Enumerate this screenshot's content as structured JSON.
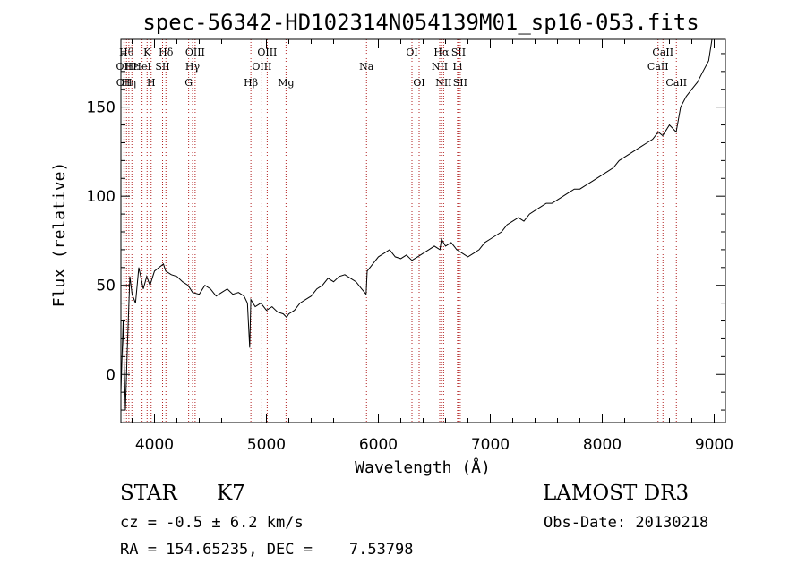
{
  "chart_data": {
    "type": "line",
    "title": "spec-56342-HD102314N054139M01_sp16-053.fits",
    "xlabel": "Wavelength (Å)",
    "ylabel": "Flux (relative)",
    "xlim": [
      3700,
      9100
    ],
    "ylim": [
      -27,
      188
    ],
    "x_ticks": [
      4000,
      5000,
      6000,
      7000,
      8000,
      9000
    ],
    "y_ticks": [
      0,
      50,
      100,
      150
    ],
    "grid": false,
    "series": [
      {
        "name": "flux",
        "x": [
          3700,
          3720,
          3740,
          3760,
          3780,
          3800,
          3830,
          3860,
          3900,
          3930,
          3960,
          4000,
          4040,
          4080,
          4100,
          4150,
          4200,
          4250,
          4300,
          4340,
          4400,
          4450,
          4500,
          4550,
          4600,
          4650,
          4700,
          4750,
          4800,
          4830,
          4850,
          4861,
          4900,
          4950,
          5000,
          5050,
          5100,
          5150,
          5180,
          5200,
          5250,
          5300,
          5350,
          5400,
          5450,
          5500,
          5550,
          5600,
          5650,
          5700,
          5750,
          5800,
          5850,
          5890,
          5900,
          5950,
          6000,
          6050,
          6100,
          6150,
          6200,
          6250,
          6300,
          6350,
          6400,
          6450,
          6500,
          6550,
          6563,
          6600,
          6650,
          6700,
          6750,
          6800,
          6850,
          6900,
          6950,
          7000,
          7050,
          7100,
          7150,
          7200,
          7250,
          7300,
          7350,
          7400,
          7450,
          7500,
          7550,
          7600,
          7650,
          7700,
          7750,
          7800,
          7850,
          7900,
          7950,
          8000,
          8050,
          8100,
          8150,
          8200,
          8250,
          8300,
          8350,
          8400,
          8450,
          8500,
          8540,
          8600,
          8660,
          8700,
          8750,
          8800,
          8850,
          8900,
          8950,
          8980
        ],
        "y": [
          -10,
          30,
          -20,
          20,
          55,
          45,
          40,
          60,
          48,
          55,
          50,
          58,
          60,
          62,
          58,
          56,
          55,
          52,
          50,
          46,
          45,
          50,
          48,
          44,
          46,
          48,
          45,
          46,
          44,
          40,
          15,
          42,
          38,
          40,
          36,
          38,
          35,
          34,
          32,
          34,
          36,
          40,
          42,
          44,
          48,
          50,
          54,
          52,
          55,
          56,
          54,
          52,
          48,
          45,
          58,
          62,
          66,
          68,
          70,
          66,
          65,
          67,
          64,
          66,
          68,
          70,
          72,
          70,
          76,
          72,
          74,
          70,
          68,
          66,
          68,
          70,
          74,
          76,
          78,
          80,
          84,
          86,
          88,
          86,
          90,
          92,
          94,
          96,
          96,
          98,
          100,
          102,
          104,
          104,
          106,
          108,
          110,
          112,
          114,
          116,
          120,
          122,
          124,
          126,
          128,
          130,
          132,
          136,
          134,
          140,
          136,
          150,
          156,
          160,
          164,
          170,
          176,
          188
        ]
      }
    ],
    "line_markers": [
      {
        "wl": 3727,
        "label": "OII",
        "row": 2
      },
      {
        "wl": 3729,
        "label": "OII",
        "row": 3
      },
      {
        "wl": 3750,
        "label": "Hθ",
        "row": 1
      },
      {
        "wl": 3771,
        "label": "Hη",
        "row": 3
      },
      {
        "wl": 3798,
        "label": "Hε",
        "row": 2
      },
      {
        "wl": 3889,
        "label": "HeI",
        "row": 2
      },
      {
        "wl": 3934,
        "label": "K",
        "row": 1
      },
      {
        "wl": 3970,
        "label": "H",
        "row": 3
      },
      {
        "wl": 4072,
        "label": "SII",
        "row": 2
      },
      {
        "wl": 4102,
        "label": "Hδ",
        "row": 1
      },
      {
        "wl": 4305,
        "label": "G",
        "row": 3
      },
      {
        "wl": 4340,
        "label": "Hγ",
        "row": 2
      },
      {
        "wl": 4363,
        "label": "OIII",
        "row": 1
      },
      {
        "wl": 4861,
        "label": "Hβ",
        "row": 3
      },
      {
        "wl": 4959,
        "label": "OIII",
        "row": 2
      },
      {
        "wl": 5007,
        "label": "OIII",
        "row": 1
      },
      {
        "wl": 5175,
        "label": "Mg",
        "row": 3
      },
      {
        "wl": 5894,
        "label": "Na",
        "row": 2
      },
      {
        "wl": 6300,
        "label": "OI",
        "row": 1
      },
      {
        "wl": 6364,
        "label": "OI",
        "row": 3
      },
      {
        "wl": 6548,
        "label": "NII",
        "row": 2
      },
      {
        "wl": 6563,
        "label": "Hα",
        "row": 1
      },
      {
        "wl": 6583,
        "label": "NII",
        "row": 3
      },
      {
        "wl": 6707,
        "label": "Li",
        "row": 2
      },
      {
        "wl": 6716,
        "label": "SII",
        "row": 1
      },
      {
        "wl": 6731,
        "label": "SII",
        "row": 3
      },
      {
        "wl": 8498,
        "label": "CaII",
        "row": 2
      },
      {
        "wl": 8542,
        "label": "CaII",
        "row": 1
      },
      {
        "wl": 8662,
        "label": "CaII",
        "row": 3
      }
    ]
  },
  "info": {
    "object_class": "STAR",
    "subclass": "K7",
    "survey": "LAMOST DR3",
    "cz_line": "cz = -0.5 ± 6.2 km/s",
    "obs_date": "Obs-Date: 20130218",
    "coords": "RA = 154.65235, DEC =    7.53798"
  }
}
